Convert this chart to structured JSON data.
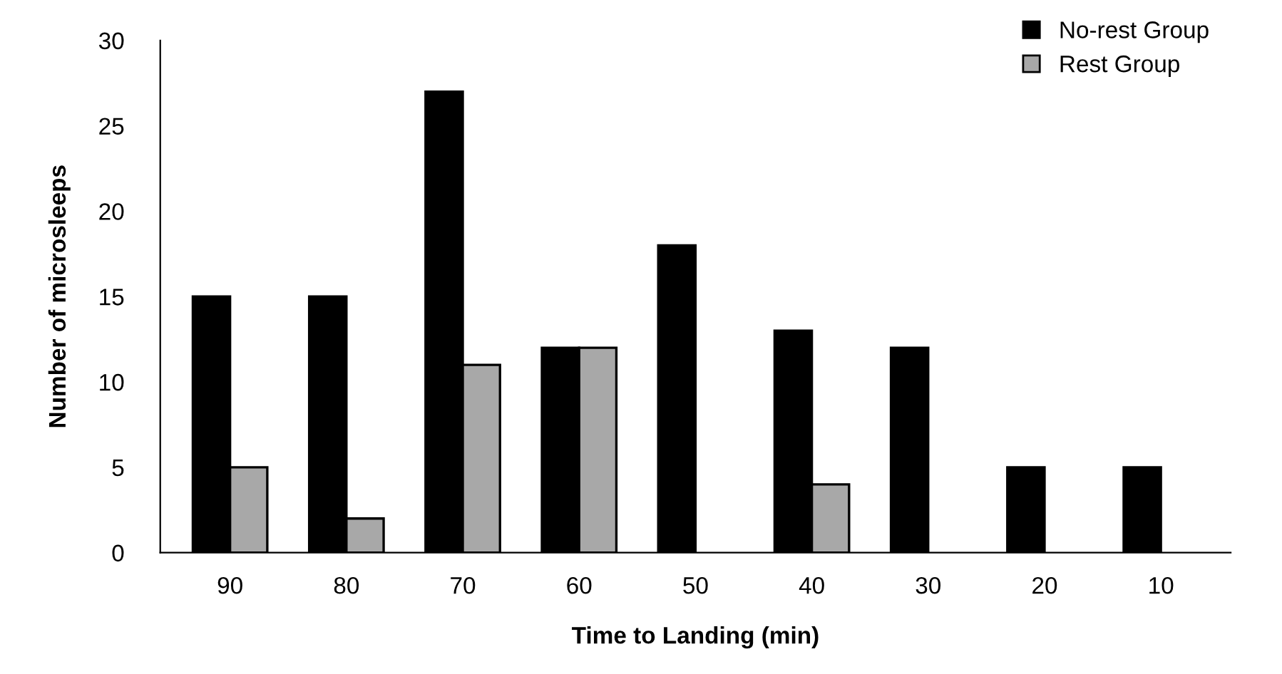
{
  "chart_data": {
    "type": "bar",
    "xlabel": "Time to Landing (min)",
    "ylabel": "Number of microsleeps",
    "categories": [
      "90",
      "80",
      "70",
      "60",
      "50",
      "40",
      "30",
      "20",
      "10"
    ],
    "series": [
      {
        "name": "No-rest Group",
        "color": "#000000",
        "values": [
          15,
          15,
          27,
          12,
          18,
          13,
          12,
          5,
          5
        ]
      },
      {
        "name": "Rest Group",
        "color": "#a8a8a8",
        "values": [
          5,
          2,
          11,
          12,
          null,
          4,
          null,
          null,
          null
        ]
      }
    ],
    "ylim": [
      0,
      30
    ],
    "yticks": [
      0,
      5,
      10,
      15,
      20,
      25,
      30
    ],
    "grid": false,
    "legend": "top right"
  }
}
